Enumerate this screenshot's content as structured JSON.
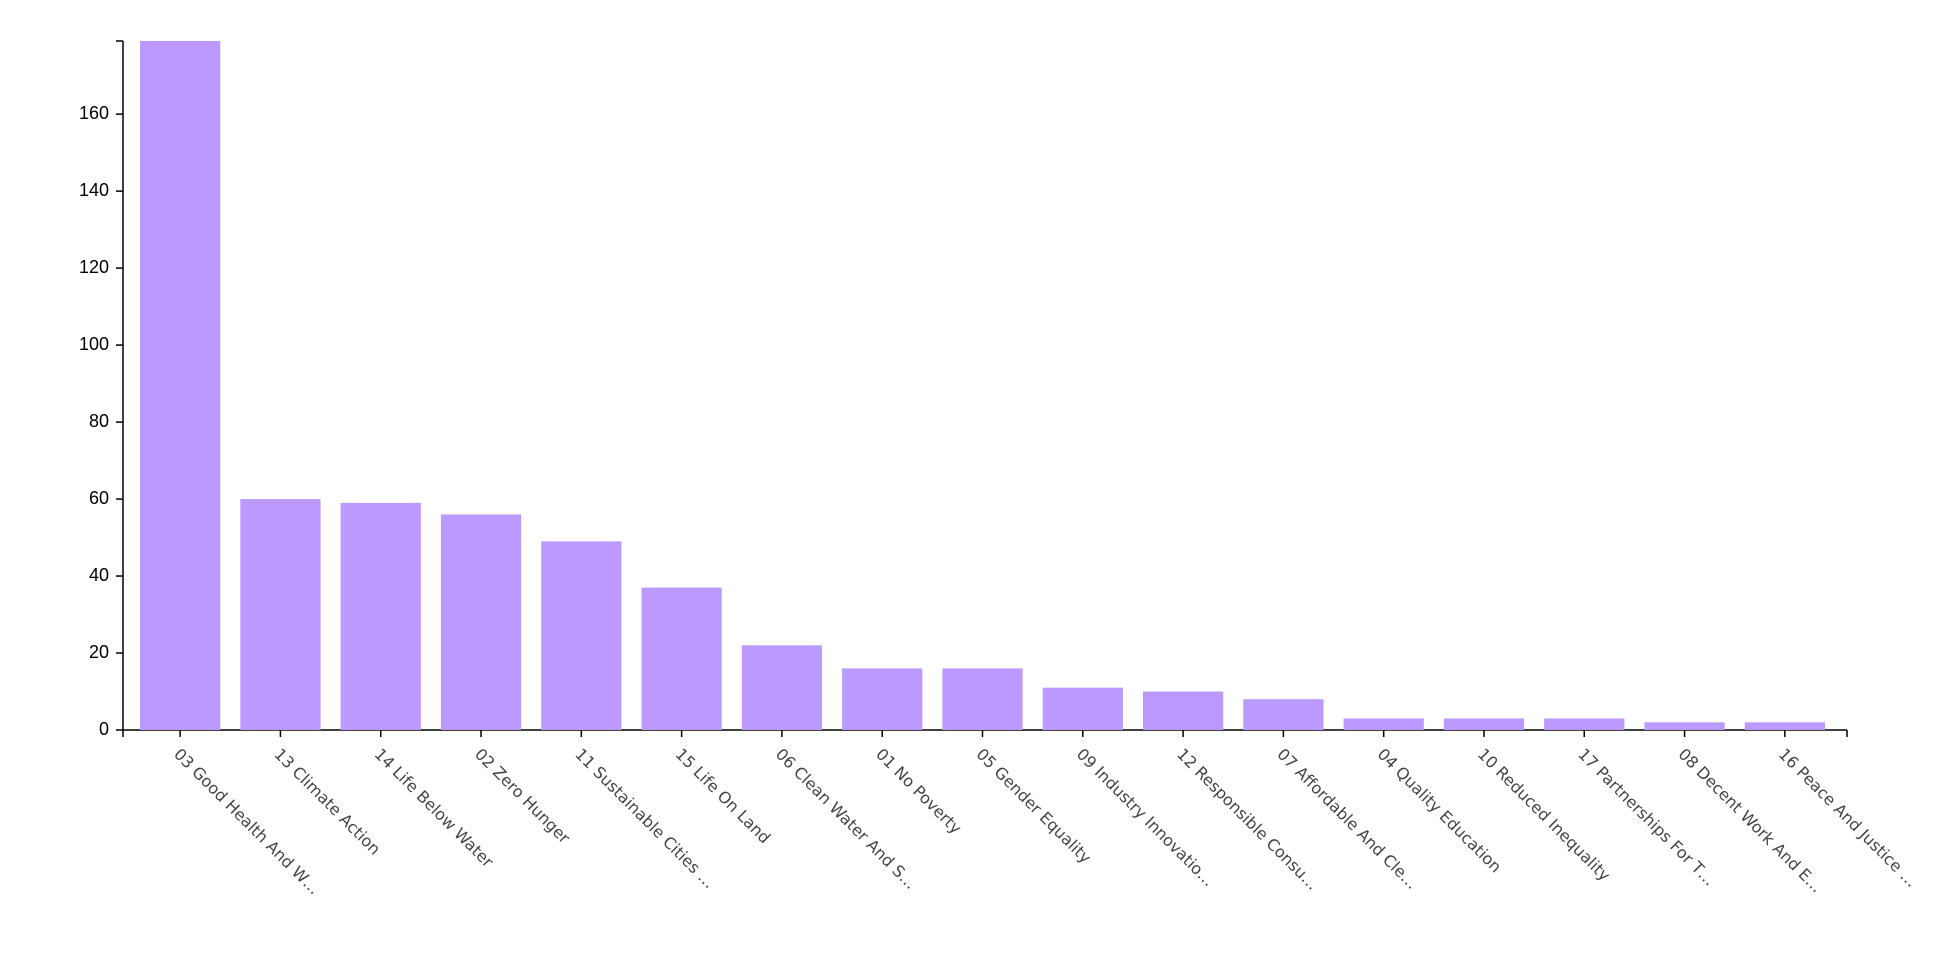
{
  "chart_data": {
    "type": "bar",
    "categories": [
      "03 Good Health And W…",
      "13 Climate Action",
      "14 Life Below Water",
      "02 Zero Hunger",
      "11 Sustainable Cities …",
      "15 Life On Land",
      "06 Clean Water And S…",
      "01 No Poverty",
      "05 Gender Equality",
      "09 Industry Innovatio…",
      "12 Responsible Consu…",
      "07 Affordable And Cle…",
      "04 Quality Education",
      "10 Reduced Inequality",
      "17 Partnerships For T…",
      "08 Decent Work And E…",
      "16 Peace And Justice …"
    ],
    "values": [
      179,
      60,
      59,
      56,
      49,
      37,
      22,
      16,
      16,
      11,
      10,
      8,
      3,
      3,
      3,
      2,
      2
    ],
    "color": "#bb99ff",
    "ylim": [
      0,
      179
    ],
    "yticks": [
      0,
      20,
      40,
      60,
      80,
      100,
      120,
      140,
      160
    ]
  }
}
